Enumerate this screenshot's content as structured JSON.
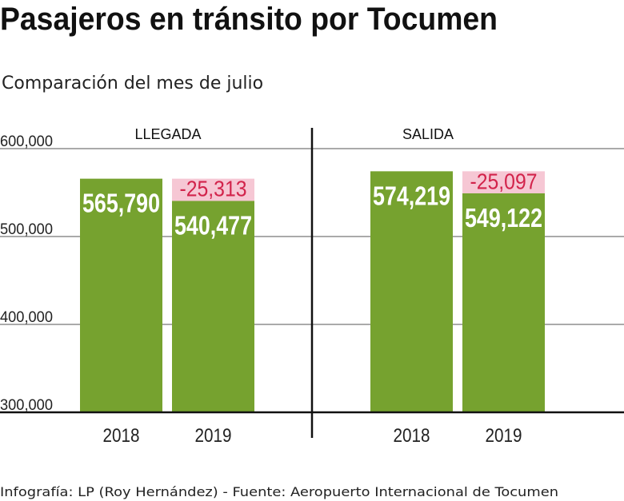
{
  "chart_data": {
    "type": "bar",
    "title": "Pasajeros en tránsito por Tocumen",
    "subtitle": "Comparación del mes de julio",
    "ylim": [
      300000,
      600000
    ],
    "yticks": [
      300000,
      400000,
      500000,
      600000
    ],
    "ytick_labels": [
      "300,000",
      "400,000",
      "500,000",
      "600,000"
    ],
    "grid": true,
    "panels": [
      {
        "name": "LLEGADA",
        "categories": [
          "2018",
          "2019"
        ],
        "values": [
          565790,
          540477
        ],
        "value_labels": [
          "565,790",
          "540,477"
        ],
        "difference": -25313,
        "difference_label": "-25,313"
      },
      {
        "name": "SALIDA",
        "categories": [
          "2018",
          "2019"
        ],
        "values": [
          574219,
          549122
        ],
        "value_labels": [
          "574,219",
          "549,122"
        ],
        "difference": -25097,
        "difference_label": "-25,097"
      }
    ],
    "colors": {
      "bar": "#76a22f",
      "difference_band": "#f6c7d4",
      "difference_text": "#d2234b"
    },
    "footer": "Infografía: LP (Roy Hernández) - Fuente: Aeropuerto Internacional de Tocumen"
  }
}
